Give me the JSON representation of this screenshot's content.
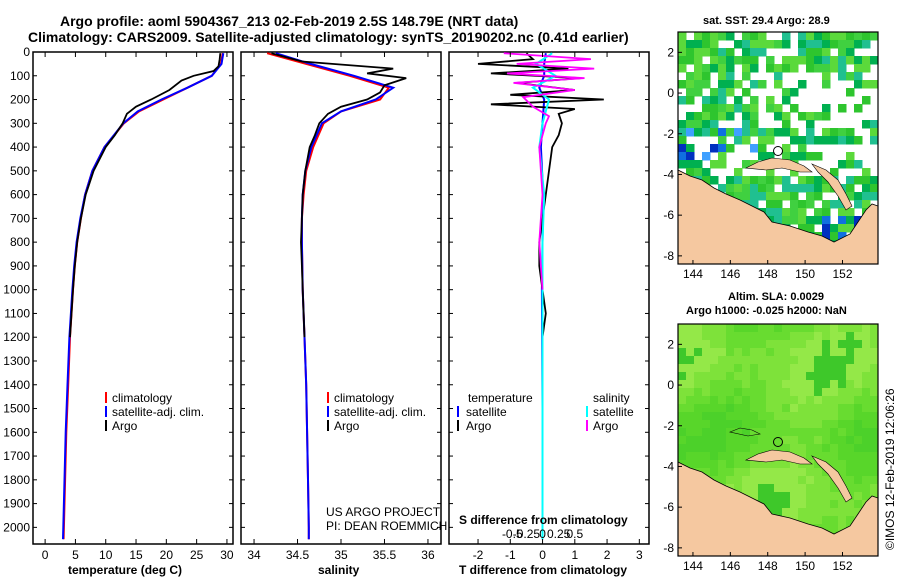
{
  "titles": {
    "line1": "Argo profile: aoml 5904367_213 02-Feb-2019 2.5S 148.79E (NRT data)",
    "line2": "Climatology: CARS2009. Satellite-adjusted climatology: synTS_20190202.nc (0.41d earlier)"
  },
  "depth_axis": {
    "ylim": [
      0,
      2070
    ],
    "ticks": [
      0,
      100,
      200,
      300,
      400,
      500,
      600,
      700,
      800,
      900,
      1000,
      1100,
      1200,
      1300,
      1400,
      1500,
      1600,
      1700,
      1800,
      1900,
      2000
    ]
  },
  "colors": {
    "climatology": "#ff0000",
    "satellite": "#0000ff",
    "argo": "#000000",
    "salinity_sat": "#00ffff",
    "salinity_argo": "#ff00ff",
    "land": "#f5c8a0"
  },
  "credit": {
    "line1": "US ARGO PROJECT",
    "line2": "PI: DEAN ROEMMICH"
  },
  "footer": "©IMOS 12-Feb-2019 12:06:26",
  "chart_data": [
    {
      "type": "line",
      "id": "temperature",
      "xlabel": "temperature (deg C)",
      "xlim": [
        -2,
        31
      ],
      "xticks": [
        0,
        5,
        10,
        15,
        20,
        25,
        30
      ],
      "legend": [
        "climatology",
        "satellite-adj. clim.",
        "Argo"
      ],
      "series": [
        {
          "name": "climatology",
          "color": "#ff0000",
          "depth": [
            5,
            50,
            100,
            150,
            200,
            250,
            300,
            400,
            500,
            600,
            700,
            800,
            900,
            1000,
            1200,
            1400,
            1600,
            1800,
            2000,
            2050
          ],
          "values": [
            29.3,
            29.0,
            27.5,
            23.5,
            19.5,
            15.5,
            13.0,
            9.8,
            7.8,
            6.6,
            5.9,
            5.3,
            4.9,
            4.6,
            4.1,
            3.8,
            3.5,
            3.3,
            3.1,
            3.05
          ]
        },
        {
          "name": "satellite",
          "color": "#0000ff",
          "depth": [
            5,
            50,
            100,
            150,
            200,
            250,
            300,
            400,
            500,
            600,
            700,
            800,
            900,
            1000,
            1200,
            1400,
            1600,
            1800,
            2000,
            2050
          ],
          "values": [
            29.4,
            29.1,
            27.5,
            23.5,
            19.2,
            15.3,
            12.9,
            9.8,
            7.8,
            6.6,
            5.8,
            5.2,
            4.8,
            4.5,
            4.0,
            3.7,
            3.4,
            3.2,
            3.0,
            2.95
          ]
        },
        {
          "name": "Argo",
          "color": "#000000",
          "depth": [
            5,
            30,
            60,
            80,
            100,
            120,
            160,
            200,
            230,
            260,
            300,
            350,
            400,
            500,
            600,
            700,
            800,
            900,
            1000,
            1100,
            1200
          ],
          "values": [
            28.9,
            28.8,
            28.6,
            27.8,
            24.5,
            22.5,
            20.5,
            17.5,
            15.0,
            13.5,
            12.8,
            11.5,
            10.0,
            8.0,
            6.7,
            5.9,
            5.3,
            4.9,
            4.6,
            4.35,
            4.1
          ]
        }
      ]
    },
    {
      "type": "line",
      "id": "salinity",
      "xlabel": "salinity",
      "xlim": [
        33.85,
        36.15
      ],
      "xticks": [
        34,
        34.5,
        35,
        35.5,
        36
      ],
      "legend": [
        "climatology",
        "satellite-adj. clim.",
        "Argo"
      ],
      "series": [
        {
          "name": "climatology",
          "color": "#ff0000",
          "depth": [
            5,
            50,
            100,
            150,
            200,
            250,
            300,
            400,
            500,
            600,
            700,
            800,
            1000,
            1200,
            1400,
            1600,
            1800,
            2000,
            2050
          ],
          "values": [
            34.15,
            34.6,
            35.1,
            35.55,
            35.45,
            35.0,
            34.8,
            34.68,
            34.6,
            34.57,
            34.55,
            34.55,
            34.56,
            34.58,
            34.6,
            34.61,
            34.62,
            34.63,
            34.63
          ]
        },
        {
          "name": "satellite",
          "color": "#0000ff",
          "depth": [
            5,
            50,
            100,
            150,
            200,
            250,
            300,
            400,
            500,
            600,
            700,
            800,
            1000,
            1200,
            1400,
            1600,
            1800,
            2000,
            2050
          ],
          "values": [
            34.25,
            34.65,
            35.15,
            35.6,
            35.4,
            35.0,
            34.78,
            34.66,
            34.59,
            34.56,
            34.55,
            34.55,
            34.56,
            34.58,
            34.6,
            34.61,
            34.62,
            34.63,
            34.63
          ]
        },
        {
          "name": "Argo",
          "color": "#000000",
          "depth": [
            5,
            40,
            70,
            90,
            110,
            140,
            170,
            200,
            230,
            260,
            300,
            350,
            400,
            500,
            600,
            700,
            800,
            900,
            1000,
            1100,
            1200
          ],
          "values": [
            34.2,
            34.55,
            35.6,
            35.3,
            35.75,
            35.5,
            35.45,
            35.3,
            35.0,
            34.85,
            34.75,
            34.7,
            34.64,
            34.59,
            34.56,
            34.55,
            34.54,
            34.55,
            34.56,
            34.57,
            34.58
          ]
        }
      ]
    },
    {
      "type": "line",
      "id": "difference",
      "xlabel": "T difference from climatology",
      "x2label": "S difference from climatology",
      "xlim": [
        -2.9,
        3.3
      ],
      "xticks": [
        -2,
        -1,
        0,
        1,
        2,
        3
      ],
      "x2ticks": [
        "-0.5",
        "-0.25",
        "0",
        "0.25",
        "0.5"
      ],
      "legend_temperature": [
        "satellite",
        "Argo"
      ],
      "legend_salinity": [
        "satellite",
        "Argo"
      ],
      "legend_headers": [
        "temperature",
        "salinity"
      ],
      "series": [
        {
          "name": "T satellite",
          "color": "#0000ff",
          "depth": [
            5,
            50,
            100,
            150,
            200,
            300,
            400,
            600,
            800,
            1000,
            1500,
            2000,
            2050
          ],
          "values": [
            0.1,
            0.05,
            0.05,
            -0.1,
            0.05,
            0.0,
            -0.05,
            0.02,
            0.0,
            -0.02,
            0.0,
            0.0,
            0.0
          ]
        },
        {
          "name": "T Argo",
          "color": "#000000",
          "depth": [
            5,
            30,
            50,
            70,
            90,
            110,
            130,
            160,
            180,
            200,
            220,
            240,
            260,
            300,
            350,
            400,
            500,
            600,
            700,
            800,
            900,
            1000,
            1100,
            1200
          ],
          "values": [
            -0.5,
            -0.3,
            -2.0,
            0.8,
            -1.6,
            1.2,
            -0.8,
            1.0,
            -1.0,
            1.9,
            -1.6,
            1.0,
            0.5,
            0.6,
            0.5,
            0.3,
            0.2,
            0.1,
            0.0,
            -0.1,
            -0.1,
            0.0,
            0.1,
            0.0
          ]
        },
        {
          "name": "S satellite",
          "color": "#00ffff",
          "depth": [
            5,
            50,
            100,
            150,
            200,
            300,
            400,
            600,
            800,
            1000,
            1500,
            2000,
            2050
          ],
          "values": [
            0.3,
            -0.2,
            0.4,
            -0.3,
            0.2,
            0.0,
            -0.1,
            0.05,
            0.0,
            0.0,
            0.0,
            0.0,
            0.0
          ]
        },
        {
          "name": "S Argo",
          "color": "#ff00ff",
          "depth": [
            5,
            30,
            50,
            70,
            90,
            110,
            130,
            160,
            190,
            230,
            270,
            300,
            350,
            400,
            600,
            800,
            1000
          ],
          "values": [
            -1.2,
            1.5,
            -0.8,
            1.6,
            -1.1,
            1.3,
            -0.9,
            1.0,
            -0.6,
            -0.3,
            0.2,
            0.1,
            0.0,
            -0.1,
            0.0,
            -0.1,
            0.0
          ]
        }
      ]
    },
    {
      "type": "heatmap",
      "id": "sst-map",
      "title": "sat. SST: 29.4 Argo: 28.9",
      "xticks": [
        "144",
        "146",
        "148",
        "150",
        "152"
      ],
      "yticks": [
        "2",
        "0",
        "-2",
        "-4",
        "-6",
        "-8"
      ],
      "profile_lon": 148.79,
      "profile_lat": -2.5
    },
    {
      "type": "heatmap",
      "id": "sla-map",
      "title_line1": "Altim. SLA: 0.0029",
      "title_line2": "Argo h1000: -0.025 h2000: NaN",
      "xticks": [
        "144",
        "146",
        "148",
        "150",
        "152"
      ],
      "yticks": [
        "2",
        "0",
        "-2",
        "-4",
        "-6",
        "-8"
      ],
      "profile_lon": 148.79,
      "profile_lat": -2.5
    }
  ]
}
